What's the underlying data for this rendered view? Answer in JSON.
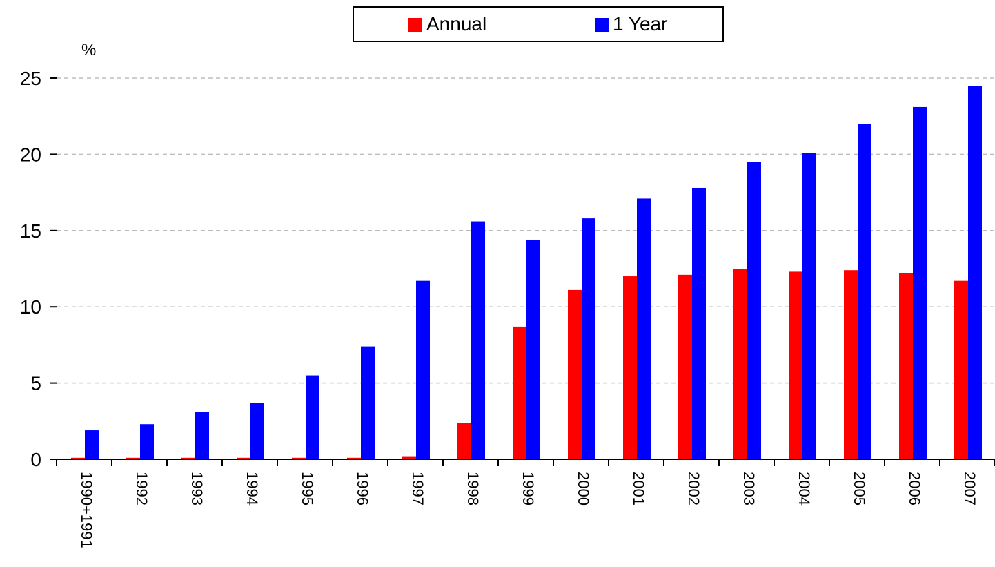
{
  "chart_data": {
    "type": "bar",
    "unit_label": "%",
    "categories": [
      "1990+1991",
      "1992",
      "1993",
      "1994",
      "1995",
      "1996",
      "1997",
      "1998",
      "1999",
      "2000",
      "2001",
      "2002",
      "2003",
      "2004",
      "2005",
      "2006",
      "2007"
    ],
    "series": [
      {
        "name": "Annual",
        "color": "#ff0000",
        "values": [
          0.1,
          0.1,
          0.1,
          0.1,
          0.1,
          0.1,
          0.2,
          2.4,
          8.7,
          11.1,
          12.0,
          12.1,
          12.5,
          12.3,
          12.4,
          12.2,
          11.7
        ]
      },
      {
        "name": "1 Year",
        "color": "#0000ff",
        "values": [
          1.9,
          2.3,
          3.1,
          3.7,
          5.5,
          7.4,
          11.7,
          15.6,
          14.4,
          15.8,
          17.1,
          17.8,
          19.5,
          20.1,
          22.0,
          23.1,
          24.5
        ]
      }
    ],
    "ylim": [
      0,
      25
    ],
    "yticks": [
      "0",
      "5",
      "10",
      "15",
      "20",
      "25"
    ],
    "grid": true,
    "legend_position": "top-center"
  }
}
